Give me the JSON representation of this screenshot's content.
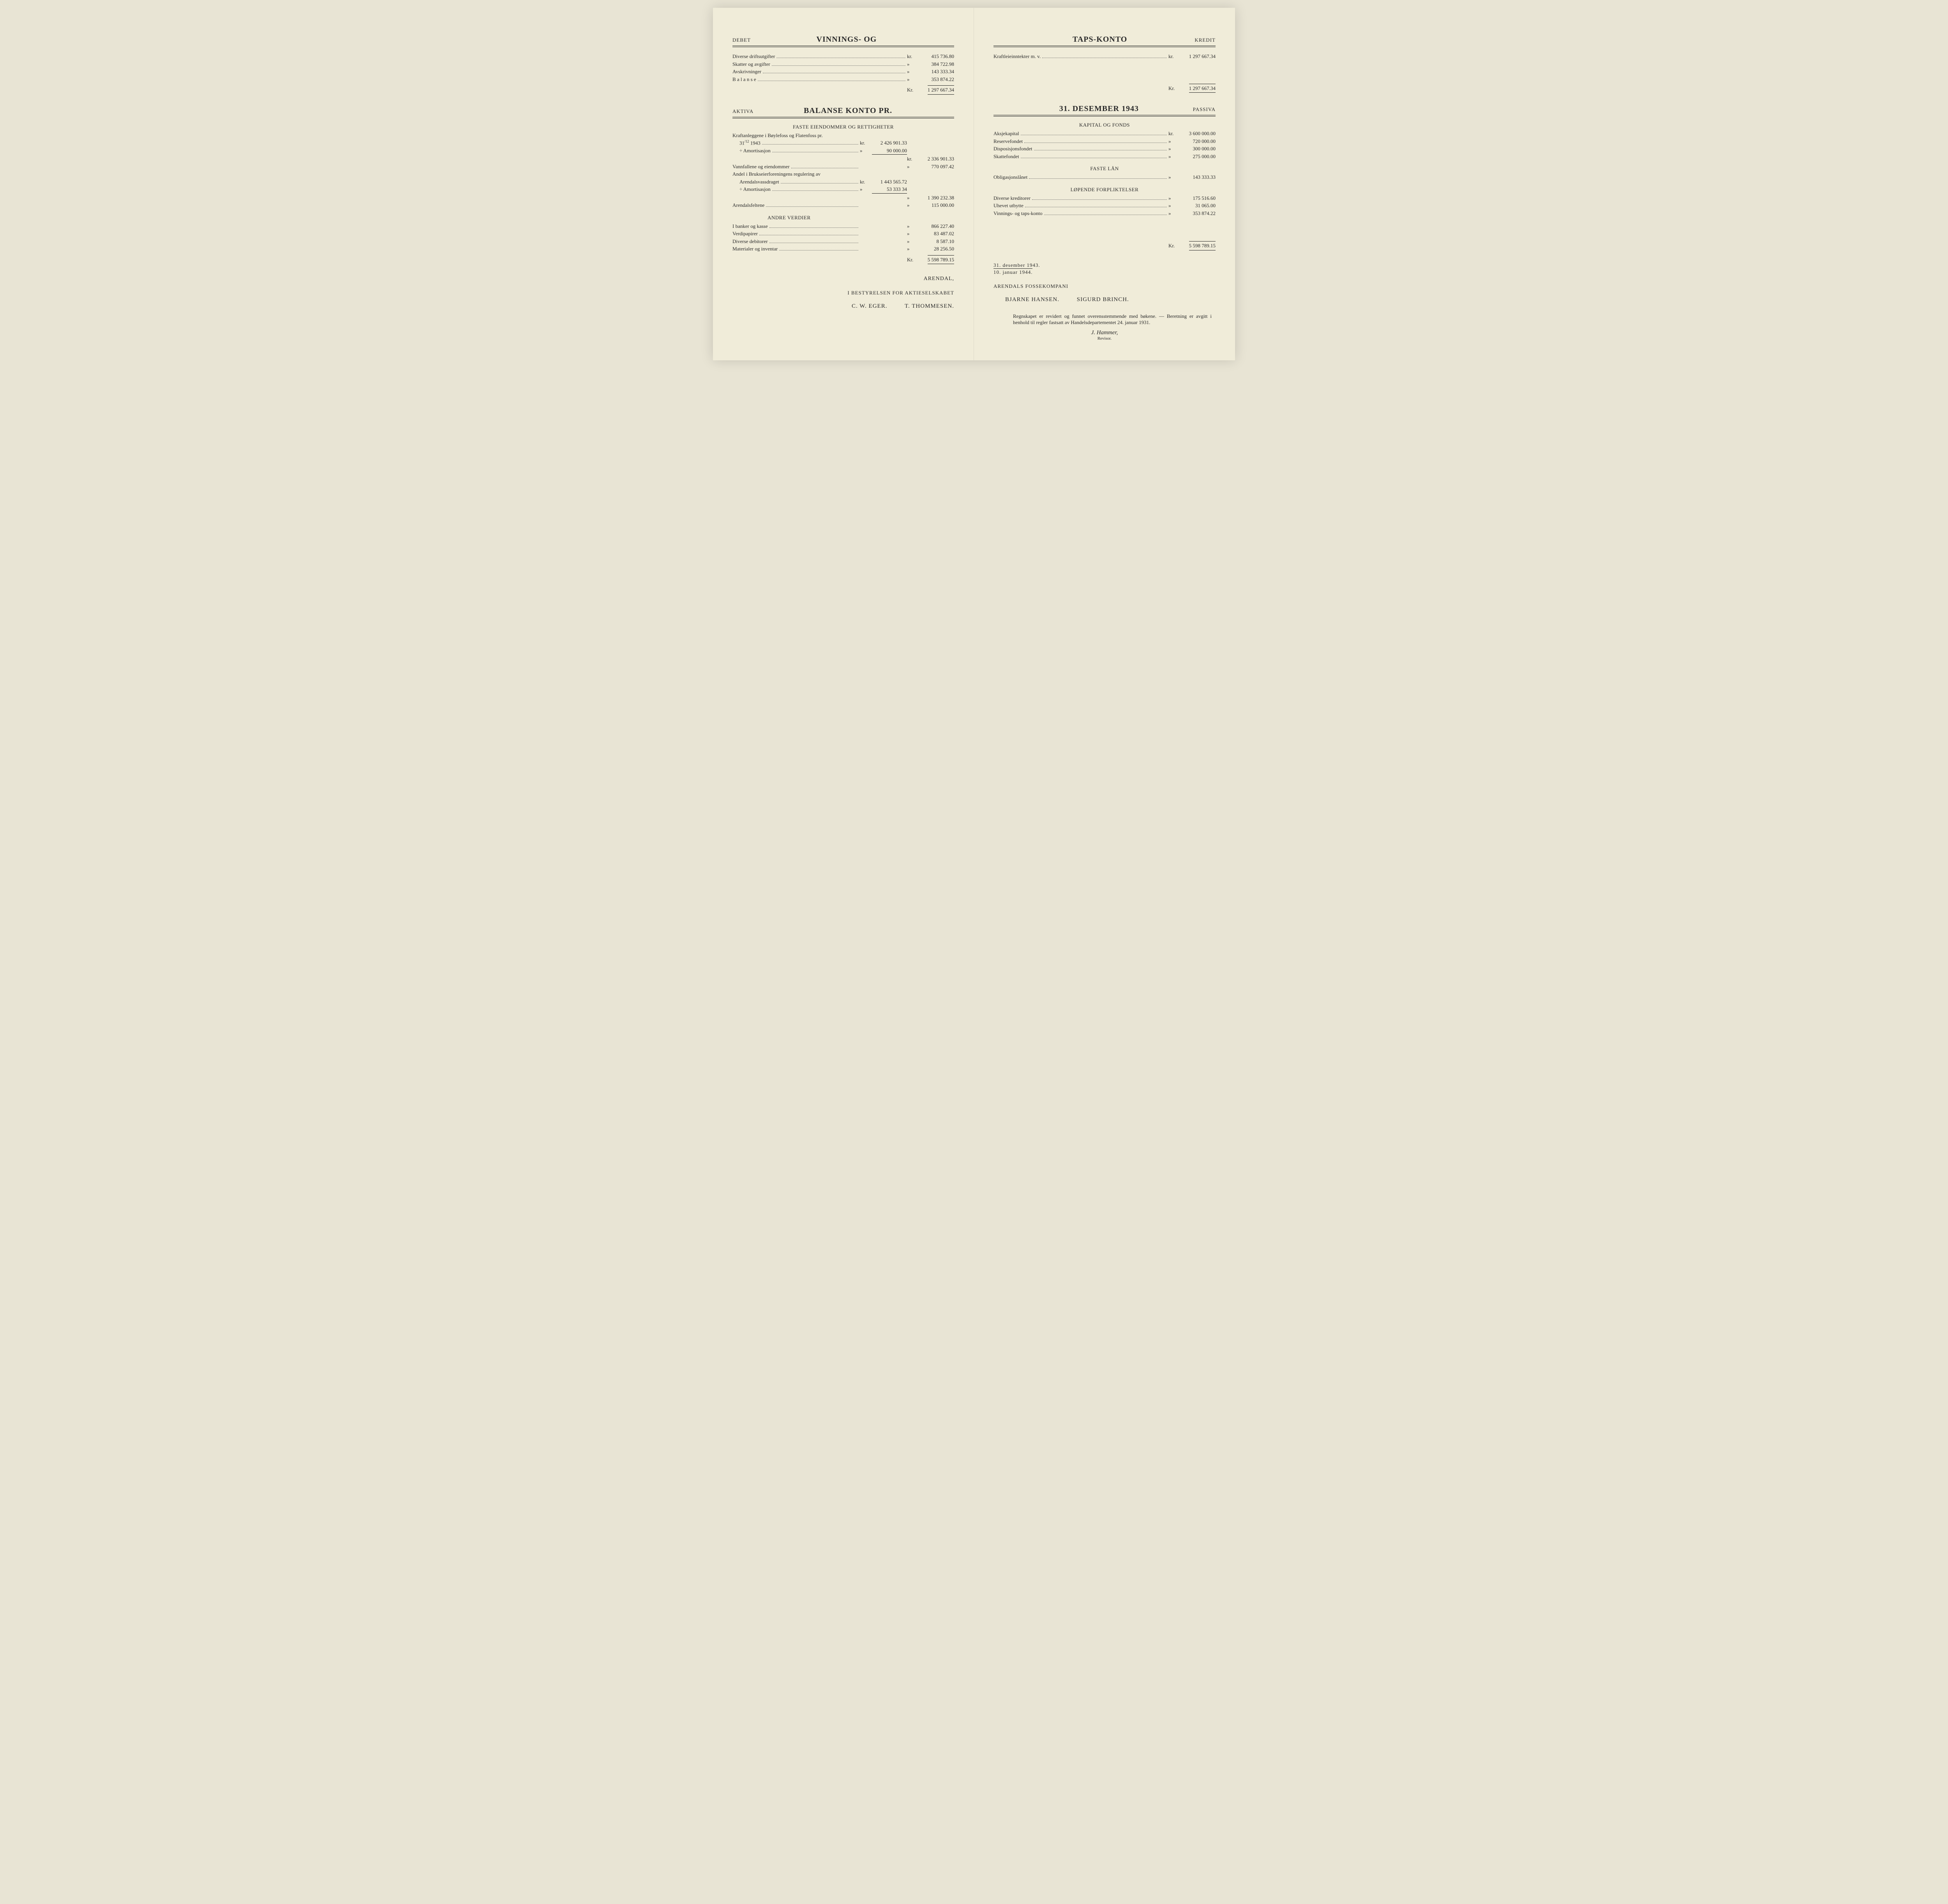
{
  "left": {
    "profit_loss": {
      "side_label": "DEBET",
      "title": "VINNINGS- OG",
      "rows": [
        {
          "label": "Diverse driftsutgifter",
          "cur": "kr.",
          "val": "415 736.80"
        },
        {
          "label": "Skatter og avgifter",
          "cur": "»",
          "val": "384 722.98"
        },
        {
          "label": "Avskrivninger",
          "cur": "»",
          "val": "143 333.34"
        },
        {
          "label": "B a l a n s e",
          "cur": "»",
          "val": "353 874.22"
        }
      ],
      "total_cur": "Kr.",
      "total": "1 297 667.34"
    },
    "balance": {
      "side_label": "AKTIVA",
      "title": "BALANSE KONTO PR.",
      "sec1": {
        "heading": "FASTE EIENDOMMER OG RETTIGHETER",
        "l1": "Kraftanleggene i Bøylefoss og Flatenfoss pr.",
        "l1b_pre": "31",
        "l1b_sup": "/12",
        "l1b_rest": " 1943",
        "l1b_cur": "kr.",
        "l1b_val": "2 426 901.33",
        "l2": "÷ Amortisasjon",
        "l2_cur": "»",
        "l2_val": "90 000.00",
        "l_sum_cur": "kr.",
        "l_sum_val": "2 336 901.33",
        "l3": "Vannfallene og eiendommer",
        "l3_cur": "»",
        "l3_val": "770 097.42",
        "l4": "Andel i Brukseierforeningens regulering av",
        "l4b": "Arendalsvassdraget",
        "l4b_cur": "kr.",
        "l4b_val": "1 443 565.72",
        "l5": "÷ Amortisasjon",
        "l5_cur": "»",
        "l5_val": "53 333 34",
        "l_sum2_cur": "»",
        "l_sum2_val": "1 390 232.38",
        "l6": "Arendalsfeltene",
        "l6_cur": "»",
        "l6_val": "115 000.00"
      },
      "sec2": {
        "heading": "ANDRE VERDIER",
        "rows": [
          {
            "label": "I banker og kasse",
            "cur": "»",
            "val": "866 227.40"
          },
          {
            "label": "Verdipapirer",
            "cur": "»",
            "val": "83 487.02"
          },
          {
            "label": "Diverse debitorer",
            "cur": "»",
            "val": "8 587.10"
          },
          {
            "label": "Materialer og inventar",
            "cur": "»",
            "val": "28 256.50"
          }
        ]
      },
      "total_cur": "Kr.",
      "total": "5 598 789.15"
    },
    "footer": {
      "place": "ARENDAL,",
      "org": "I BESTYRELSEN FOR AKTIESELSKABET",
      "name1": "C. W. EGER.",
      "name2": "T. THOMMESEN."
    }
  },
  "right": {
    "profit_loss": {
      "title": "TAPS-KONTO",
      "side_label": "KREDIT",
      "rows": [
        {
          "label": "Kraftleieinntekter m. v.",
          "cur": "kr.",
          "val": "1 297 667.34"
        }
      ],
      "total_cur": "Kr.",
      "total": "1 297 667.34"
    },
    "balance": {
      "title": "31. DESEMBER 1943",
      "side_label": "PASSIVA",
      "sec1": {
        "heading": "KAPITAL OG FONDS",
        "rows": [
          {
            "label": "Aksjekapital",
            "cur": "kr.",
            "val": "3 600 000.00"
          },
          {
            "label": "Reservefondet",
            "cur": "»",
            "val": "720 000.00"
          },
          {
            "label": "Disposisjonsfondet",
            "cur": "»",
            "val": "300 000.00"
          },
          {
            "label": "Skattefondet",
            "cur": "»",
            "val": "275 000.00"
          }
        ]
      },
      "sec2": {
        "heading": "FASTE LÅN",
        "rows": [
          {
            "label": "Obligasjonslånet",
            "cur": "»",
            "val": "143 333.33"
          }
        ]
      },
      "sec3": {
        "heading": "LØPENDE FORPLIKTELSER",
        "rows": [
          {
            "label": "Diverse kreditorer",
            "cur": "»",
            "val": "175 516.60"
          },
          {
            "label": "Uhevet utbytte",
            "cur": "»",
            "val": "31 065.00"
          },
          {
            "label": "Vinnings- og taps-konto",
            "cur": "»",
            "val": "353 874.22"
          }
        ]
      },
      "total_cur": "Kr.",
      "total": "5 598 789.15"
    },
    "footer": {
      "date1": "31. desember 1943.",
      "date2": "10. januar    1944.",
      "org": "ARENDALS FOSSEKOMPANI",
      "name1": "BJARNE HANSEN.",
      "name2": "SIGURD BRINCH.",
      "audit": "Regnskapet er revidert og funnet overensstemmende med bøkene. — Beretning er avgitt i henhold til regler fastsatt av Handelsdepartementet 24. januar 1931.",
      "auditor": "J. Hammer,",
      "auditor_role": "Revisor."
    }
  }
}
